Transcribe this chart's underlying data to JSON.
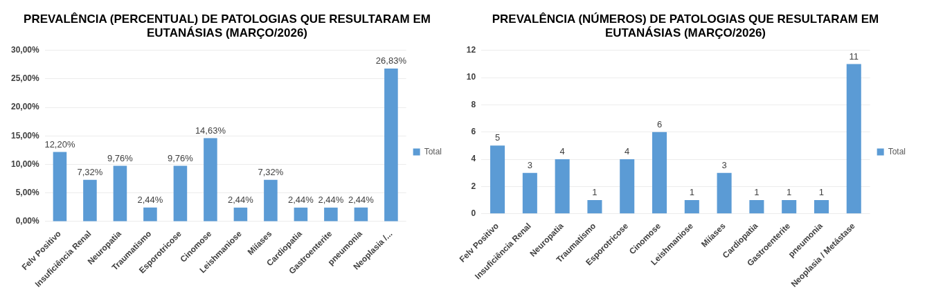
{
  "chart_data": [
    {
      "type": "bar",
      "title": "PREVALÊNCIA (PERCENTUAL) DE PATOLOGIAS QUE RESULTARAM EM EUTANÁSIAS (MARÇO/2026)",
      "categories": [
        "Felv Positivo",
        "Insuficiência Renal",
        "Neuropatia",
        "Traumatismo",
        "Esporotricose",
        "Cinomose",
        "Leishmaniose",
        "Miíases",
        "Cardiopatia",
        "Gastroenterite",
        "pneumonia",
        "Neoplasia /..."
      ],
      "series": [
        {
          "name": "Total",
          "color": "#5b9bd5",
          "values": [
            12.2,
            7.32,
            9.76,
            2.44,
            9.76,
            14.63,
            2.44,
            7.32,
            2.44,
            2.44,
            2.44,
            26.83
          ],
          "value_labels": [
            "12,20%",
            "7,32%",
            "9,76%",
            "2,44%",
            "9,76%",
            "14,63%",
            "2,44%",
            "7,32%",
            "2,44%",
            "2,44%",
            "2,44%",
            "26,83%"
          ]
        }
      ],
      "ylim": [
        0,
        30
      ],
      "yticks": [
        {
          "value": 0,
          "label": "0,00%"
        },
        {
          "value": 5,
          "label": "5,00%"
        },
        {
          "value": 10,
          "label": "10,00%"
        },
        {
          "value": 15,
          "label": "15,00%"
        },
        {
          "value": 20,
          "label": "20,00%"
        },
        {
          "value": 25,
          "label": "25,00%"
        },
        {
          "value": 30,
          "label": "30,00%"
        }
      ],
      "grid": "y",
      "legend": "right"
    },
    {
      "type": "bar",
      "title": "PREVALÊNCIA (NÚMEROS) DE PATOLOGIAS QUE RESULTARAM EM EUTANÁSIAS (MARÇO/2026)",
      "categories": [
        "Felv Positivo",
        "Insuficiência Renal",
        "Neuropatia",
        "Traumatismo",
        "Esporotricose",
        "Cinomose",
        "Leishmaniose",
        "Miíases",
        "Cardiopatia",
        "Gastroenterite",
        "pneumonia",
        "Neoplasia / Metástase"
      ],
      "series": [
        {
          "name": "Total",
          "color": "#5b9bd5",
          "values": [
            5,
            3,
            4,
            1,
            4,
            6,
            1,
            3,
            1,
            1,
            1,
            11
          ]
        }
      ],
      "ylim": [
        0,
        12
      ],
      "yticks": [
        0,
        2,
        4,
        6,
        8,
        10,
        12
      ],
      "grid": "y",
      "legend": "right",
      "data_labels": true
    }
  ]
}
